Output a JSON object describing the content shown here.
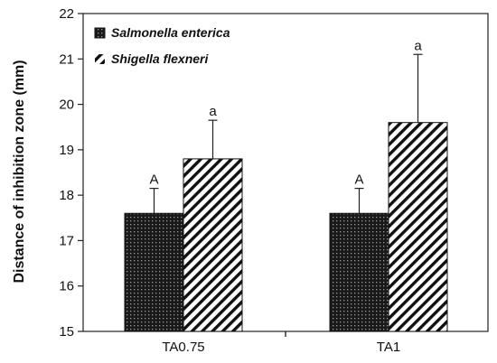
{
  "chart_data": {
    "type": "bar",
    "categories": [
      "TA0.75",
      "TA1"
    ],
    "series": [
      {
        "name": "Salmonella enterica",
        "values": [
          17.6,
          17.6
        ],
        "errors": [
          0.55,
          0.55
        ],
        "labels": [
          "A",
          "A"
        ],
        "pattern": "dots"
      },
      {
        "name": "Shigella flexneri",
        "values": [
          18.8,
          19.6
        ],
        "errors": [
          0.85,
          1.5
        ],
        "labels": [
          "a",
          "a"
        ],
        "pattern": "diagonal"
      }
    ],
    "title": "",
    "xlabel": "",
    "ylabel": "Distance of inhibition zone (mm)",
    "ylim": [
      15,
      22
    ],
    "yticks": [
      15,
      16,
      17,
      18,
      19,
      20,
      21,
      22
    ],
    "grid": false,
    "legend_position": "top-left"
  }
}
